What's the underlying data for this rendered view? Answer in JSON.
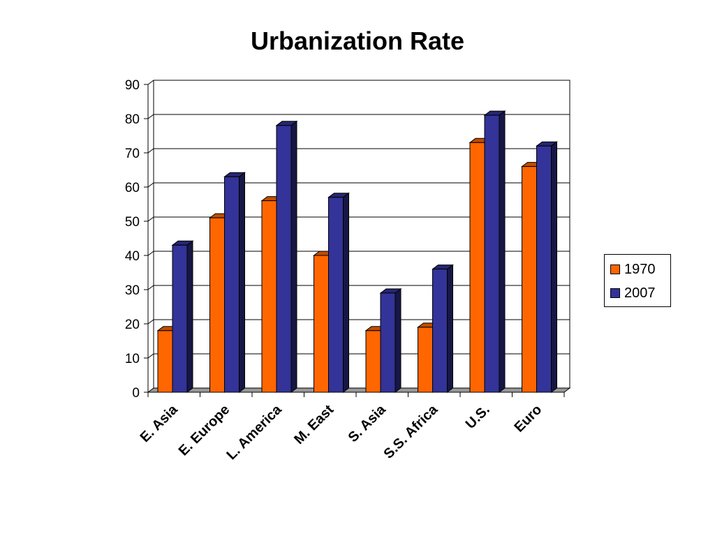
{
  "chart_data": {
    "type": "bar",
    "title": "Urbanization Rate",
    "xlabel": "",
    "ylabel": "",
    "ylim": [
      0,
      90
    ],
    "yticks": [
      0,
      10,
      20,
      30,
      40,
      50,
      60,
      70,
      80,
      90
    ],
    "categories": [
      "E. Asia",
      "E. Europe",
      "L. America",
      "M. East",
      "S. Asia",
      "S.S. Africa",
      "U.S.",
      "Euro"
    ],
    "series": [
      {
        "name": "1970",
        "color": "#FF6600",
        "values": [
          18,
          51,
          56,
          40,
          18,
          19,
          73,
          66
        ]
      },
      {
        "name": "2007",
        "color": "#333399",
        "values": [
          43,
          63,
          78,
          57,
          29,
          36,
          81,
          72
        ]
      }
    ],
    "grid": true,
    "legend_position": "right",
    "style": "3d-column"
  }
}
